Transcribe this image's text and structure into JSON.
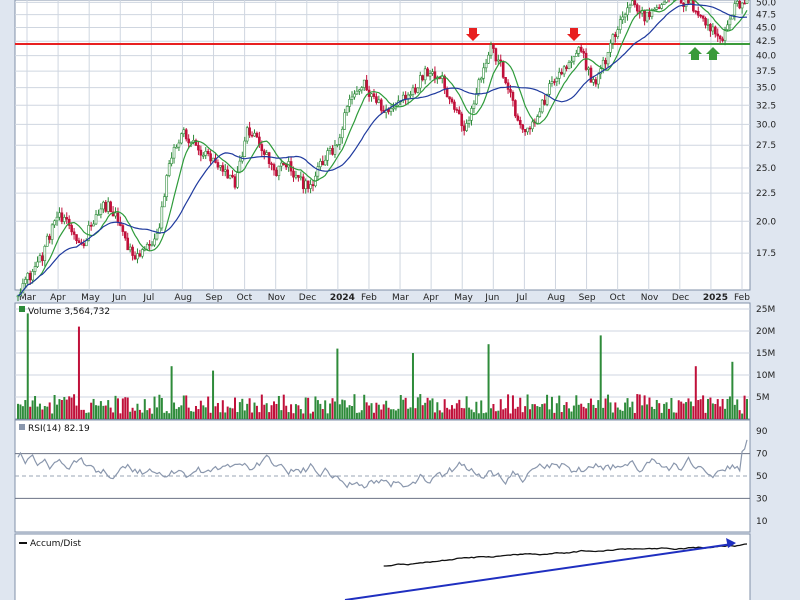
{
  "colors": {
    "background": "#dfe6f0",
    "panel": "#ffffff",
    "grid": "#cfd6e0",
    "up": "#2e8b3a",
    "down": "#c0103a",
    "ma_short": "#2e9b3a",
    "ma_long": "#1f3a9e",
    "resistance": "#e82020",
    "support": "#3a9a3a",
    "rsi_line": "#8a97ad",
    "rsi_fill": "#7aa0b0",
    "accum_line": "#111111",
    "trend_arrow": "#1f2fc0"
  },
  "chart_data": [
    {
      "type": "candlestick",
      "panel": "price",
      "x_labels": [
        "Mar",
        "Apr",
        "May",
        "Jun",
        "Jul",
        "Aug",
        "Sep",
        "Oct",
        "Nov",
        "Dec",
        "2024",
        "Feb",
        "Mar",
        "Apr",
        "May",
        "Jun",
        "Jul",
        "Aug",
        "Sep",
        "Oct",
        "Nov",
        "Dec",
        "2025",
        "Feb"
      ],
      "y_ticks": [
        "17.5",
        "20.0",
        "22.5",
        "25.0",
        "27.5",
        "30.0",
        "32.5",
        "35.0",
        "37.5",
        "40.0",
        "42.5",
        "45.0",
        "47.5",
        "50.0"
      ],
      "ylim": [
        15.0,
        50.5
      ],
      "ylog": true,
      "grid": true,
      "overlays": [
        "moving-average-short",
        "moving-average-long"
      ],
      "horizontal_lines": [
        {
          "value": 42.0,
          "color": "#e82020"
        },
        {
          "value": 42.0,
          "color": "#3a9a3a",
          "from": "Dec"
        }
      ],
      "annotations": [
        {
          "kind": "down-arrow",
          "color": "#e82020",
          "x": "May",
          "year": "2024"
        },
        {
          "kind": "down-arrow",
          "color": "#e82020",
          "x": "Aug",
          "year": "2024"
        },
        {
          "kind": "up-arrow",
          "color": "#3a9a3a",
          "x": "Dec",
          "year": "2024"
        },
        {
          "kind": "up-arrow",
          "color": "#3a9a3a",
          "x": "Jan",
          "year": "2025"
        }
      ],
      "series": [
        {
          "kind": "close-path",
          "values": [
            15.0,
            16.0,
            17.5,
            20.5,
            19.5,
            18.0,
            20.5,
            21.5,
            19.5,
            17.0,
            17.8,
            19.0,
            26.5,
            29.0,
            27.0,
            26.0,
            24.5,
            23.5,
            29.5,
            27.5,
            24.5,
            25.5,
            23.5,
            23.5,
            26.0,
            27.5,
            33.5,
            35.5,
            33.0,
            31.5,
            33.5,
            35.0,
            37.5,
            37.0,
            32.5,
            29.5,
            35.5,
            41.5,
            37.0,
            30.5,
            29.0,
            32.5,
            36.5,
            38.0,
            41.0,
            35.5,
            39.5,
            46.0,
            50.0,
            47.0,
            49.5,
            52.0,
            50.0,
            49.0,
            45.0,
            43.0,
            49.0,
            50.5
          ]
        }
      ]
    },
    {
      "type": "bar",
      "panel": "volume",
      "label": "Volume 3,564,732",
      "y_ticks": [
        "5M",
        "10M",
        "15M",
        "20M",
        "25M"
      ],
      "ylim": [
        0,
        25000000
      ],
      "spikes": [
        {
          "x_index": 4,
          "value": 24000000
        },
        {
          "x_index": 25,
          "value": 21000000
        },
        {
          "x_index": 63,
          "value": 12000000
        },
        {
          "x_index": 80,
          "value": 11000000
        },
        {
          "x_index": 131,
          "value": 16000000
        },
        {
          "x_index": 162,
          "value": 15000000
        },
        {
          "x_index": 193,
          "value": 17000000
        },
        {
          "x_index": 239,
          "value": 19000000
        },
        {
          "x_index": 278,
          "value": 12000000
        },
        {
          "x_index": 293,
          "value": 13000000
        }
      ]
    },
    {
      "type": "line",
      "panel": "rsi",
      "label": "RSI(14) 82.19",
      "y_ticks": [
        "10",
        "30",
        "50",
        "70",
        "90"
      ],
      "ylim": [
        0,
        100
      ],
      "reference_levels": [
        30,
        50,
        70
      ],
      "last_value": 82.19
    },
    {
      "type": "line",
      "panel": "accum",
      "label": "Accum/Dist",
      "trendline": "rising"
    }
  ]
}
